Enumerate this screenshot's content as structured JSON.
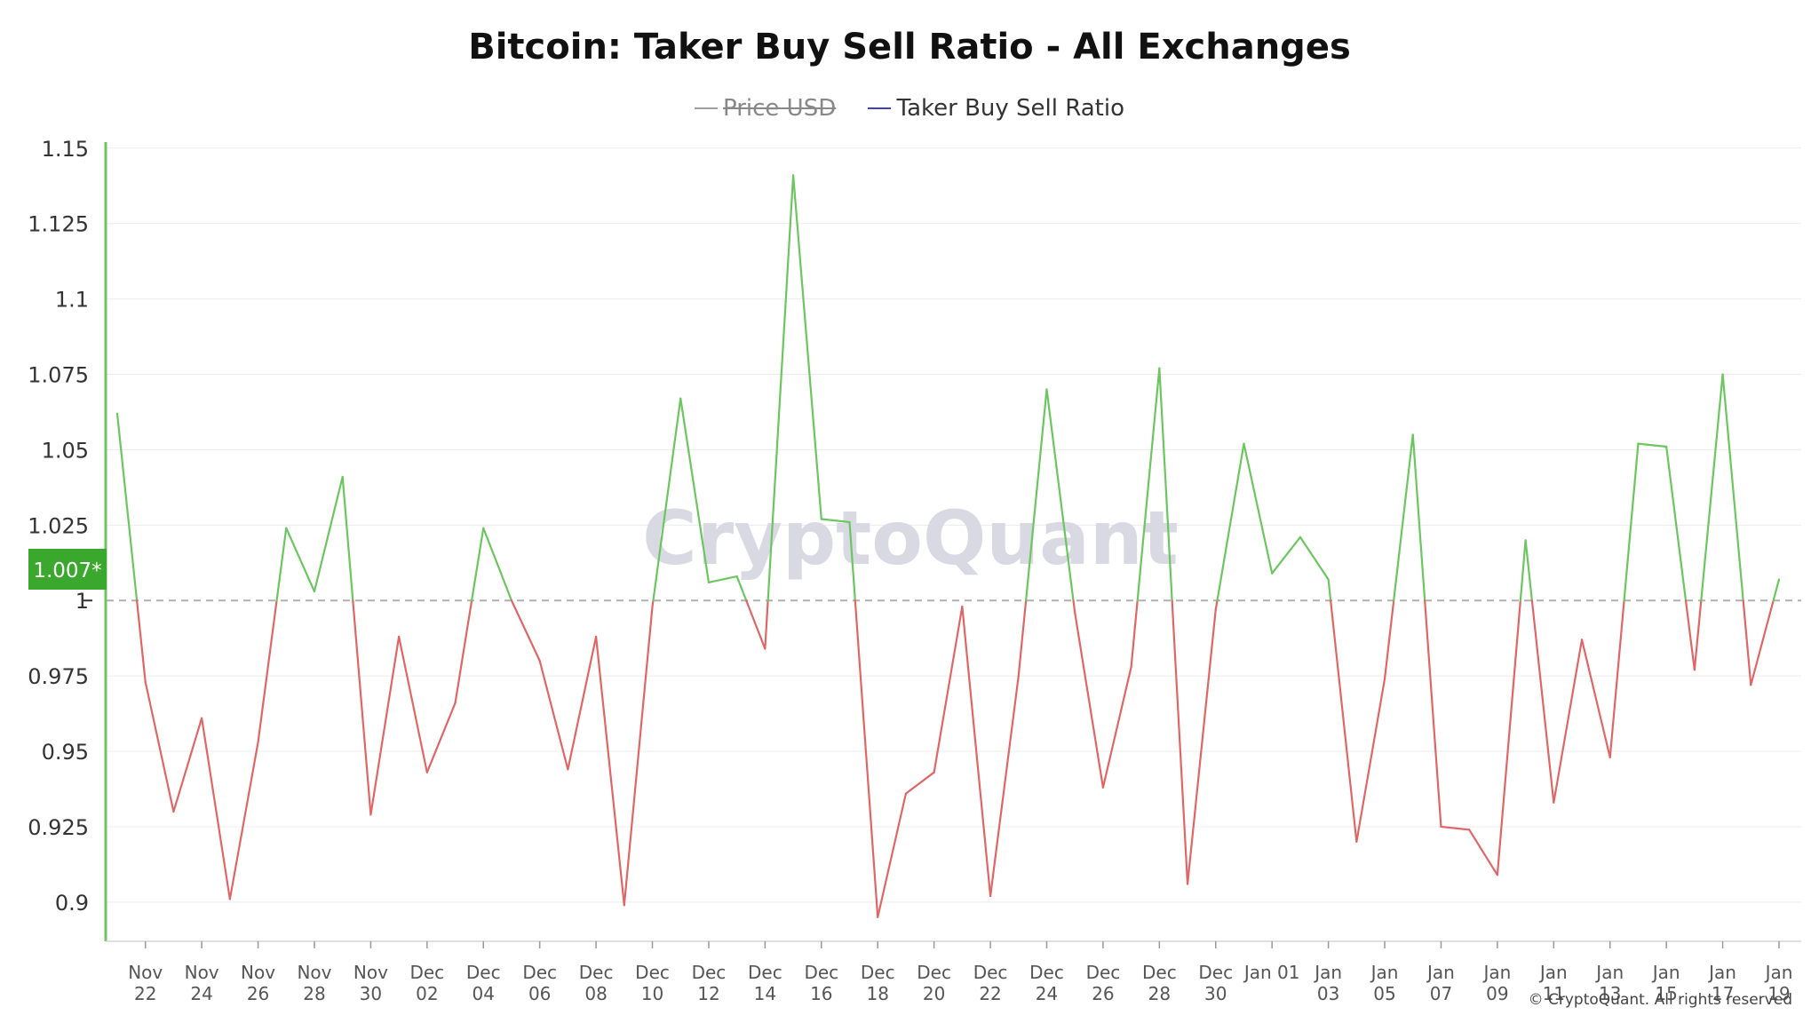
{
  "title": "Bitcoin: Taker Buy Sell Ratio - All Exchanges",
  "legend": [
    {
      "name": "Price USD",
      "color": "#9e9e9e",
      "hidden": true
    },
    {
      "name": "Taker Buy Sell Ratio",
      "color": "#3f3fbf",
      "hidden": false
    }
  ],
  "watermark": "CryptoQuant",
  "copyright": "© CryptoQuant. All rights reserved",
  "current_value_label": "1.007*",
  "colors": {
    "above": "#6cc65f",
    "below": "#e06666",
    "axis": "#6cc65f",
    "label_bg": "#3aa72d",
    "baseline": "#b0b0b0"
  },
  "chart_data": {
    "type": "line",
    "x_start": "2024-11-21",
    "x_end": "2025-01-19",
    "ylim": [
      0.887,
      1.152
    ],
    "yticks": [
      {
        "value": 1.15,
        "label": "1.15"
      },
      {
        "value": 1.125,
        "label": "1.125"
      },
      {
        "value": 1.1,
        "label": "1.1"
      },
      {
        "value": 1.075,
        "label": "1.075"
      },
      {
        "value": 1.05,
        "label": "1.05"
      },
      {
        "value": 1.025,
        "label": "1.025"
      },
      {
        "value": 1.0,
        "label": "1"
      },
      {
        "value": 0.975,
        "label": "0.975"
      },
      {
        "value": 0.95,
        "label": "0.95"
      },
      {
        "value": 0.925,
        "label": "0.925"
      },
      {
        "value": 0.9,
        "label": "0.9"
      }
    ],
    "baseline": 1.0,
    "xticks": [
      {
        "date": "2024-11-22",
        "line1": "Nov",
        "line2": "22"
      },
      {
        "date": "2024-11-24",
        "line1": "Nov",
        "line2": "24"
      },
      {
        "date": "2024-11-26",
        "line1": "Nov",
        "line2": "26"
      },
      {
        "date": "2024-11-28",
        "line1": "Nov",
        "line2": "28"
      },
      {
        "date": "2024-11-30",
        "line1": "Nov",
        "line2": "30"
      },
      {
        "date": "2024-12-02",
        "line1": "Dec",
        "line2": "02"
      },
      {
        "date": "2024-12-04",
        "line1": "Dec",
        "line2": "04"
      },
      {
        "date": "2024-12-06",
        "line1": "Dec",
        "line2": "06"
      },
      {
        "date": "2024-12-08",
        "line1": "Dec",
        "line2": "08"
      },
      {
        "date": "2024-12-10",
        "line1": "Dec",
        "line2": "10"
      },
      {
        "date": "2024-12-12",
        "line1": "Dec",
        "line2": "12"
      },
      {
        "date": "2024-12-14",
        "line1": "Dec",
        "line2": "14"
      },
      {
        "date": "2024-12-16",
        "line1": "Dec",
        "line2": "16"
      },
      {
        "date": "2024-12-18",
        "line1": "Dec",
        "line2": "18"
      },
      {
        "date": "2024-12-20",
        "line1": "Dec",
        "line2": "20"
      },
      {
        "date": "2024-12-22",
        "line1": "Dec",
        "line2": "22"
      },
      {
        "date": "2024-12-24",
        "line1": "Dec",
        "line2": "24"
      },
      {
        "date": "2024-12-26",
        "line1": "Dec",
        "line2": "26"
      },
      {
        "date": "2024-12-28",
        "line1": "Dec",
        "line2": "28"
      },
      {
        "date": "2024-12-30",
        "line1": "Dec",
        "line2": "30"
      },
      {
        "date": "2025-01-01",
        "line1": "Jan 01",
        "line2": ""
      },
      {
        "date": "2025-01-03",
        "line1": "Jan",
        "line2": "03"
      },
      {
        "date": "2025-01-05",
        "line1": "Jan",
        "line2": "05"
      },
      {
        "date": "2025-01-07",
        "line1": "Jan",
        "line2": "07"
      },
      {
        "date": "2025-01-09",
        "line1": "Jan",
        "line2": "09"
      },
      {
        "date": "2025-01-11",
        "line1": "Jan",
        "line2": "11"
      },
      {
        "date": "2025-01-13",
        "line1": "Jan",
        "line2": "13"
      },
      {
        "date": "2025-01-15",
        "line1": "Jan",
        "line2": "15"
      },
      {
        "date": "2025-01-17",
        "line1": "Jan",
        "line2": "17"
      },
      {
        "date": "2025-01-19",
        "line1": "Jan",
        "line2": "19"
      }
    ],
    "series": [
      {
        "name": "Taker Buy Sell Ratio",
        "points": [
          [
            "2024-11-21",
            1.062
          ],
          [
            "2024-11-22",
            0.973
          ],
          [
            "2024-11-23",
            0.93
          ],
          [
            "2024-11-24",
            0.961
          ],
          [
            "2024-11-25",
            0.901
          ],
          [
            "2024-11-26",
            0.953
          ],
          [
            "2024-11-27",
            1.024
          ],
          [
            "2024-11-28",
            1.003
          ],
          [
            "2024-11-29",
            1.041
          ],
          [
            "2024-11-30",
            0.929
          ],
          [
            "2024-12-01",
            0.988
          ],
          [
            "2024-12-02",
            0.943
          ],
          [
            "2024-12-03",
            0.966
          ],
          [
            "2024-12-04",
            1.024
          ],
          [
            "2024-12-05",
            1.0
          ],
          [
            "2024-12-06",
            0.98
          ],
          [
            "2024-12-07",
            0.944
          ],
          [
            "2024-12-08",
            0.988
          ],
          [
            "2024-12-09",
            0.899
          ],
          [
            "2024-12-10",
            0.998
          ],
          [
            "2024-12-11",
            1.067
          ],
          [
            "2024-12-12",
            1.006
          ],
          [
            "2024-12-13",
            1.008
          ],
          [
            "2024-12-14",
            0.984
          ],
          [
            "2024-12-15",
            1.141
          ],
          [
            "2024-12-16",
            1.027
          ],
          [
            "2024-12-17",
            1.026
          ],
          [
            "2024-12-18",
            0.895
          ],
          [
            "2024-12-19",
            0.936
          ],
          [
            "2024-12-20",
            0.943
          ],
          [
            "2024-12-21",
            0.998
          ],
          [
            "2024-12-22",
            0.902
          ],
          [
            "2024-12-23",
            0.975
          ],
          [
            "2024-12-24",
            1.07
          ],
          [
            "2024-12-25",
            0.996
          ],
          [
            "2024-12-26",
            0.938
          ],
          [
            "2024-12-27",
            0.978
          ],
          [
            "2024-12-28",
            1.077
          ],
          [
            "2024-12-29",
            0.906
          ],
          [
            "2024-12-30",
            0.997
          ],
          [
            "2024-12-31",
            1.052
          ],
          [
            "2025-01-01",
            1.009
          ],
          [
            "2025-01-02",
            1.021
          ],
          [
            "2025-01-03",
            1.007
          ],
          [
            "2025-01-04",
            0.92
          ],
          [
            "2025-01-05",
            0.974
          ],
          [
            "2025-01-06",
            1.055
          ],
          [
            "2025-01-07",
            0.925
          ],
          [
            "2025-01-08",
            0.924
          ],
          [
            "2025-01-09",
            0.909
          ],
          [
            "2025-01-10",
            1.02
          ],
          [
            "2025-01-11",
            0.933
          ],
          [
            "2025-01-12",
            0.987
          ],
          [
            "2025-01-13",
            0.948
          ],
          [
            "2025-01-14",
            1.052
          ],
          [
            "2025-01-15",
            1.051
          ],
          [
            "2025-01-16",
            0.977
          ],
          [
            "2025-01-17",
            1.075
          ],
          [
            "2025-01-18",
            0.972
          ],
          [
            "2025-01-19",
            1.007
          ]
        ]
      }
    ]
  }
}
